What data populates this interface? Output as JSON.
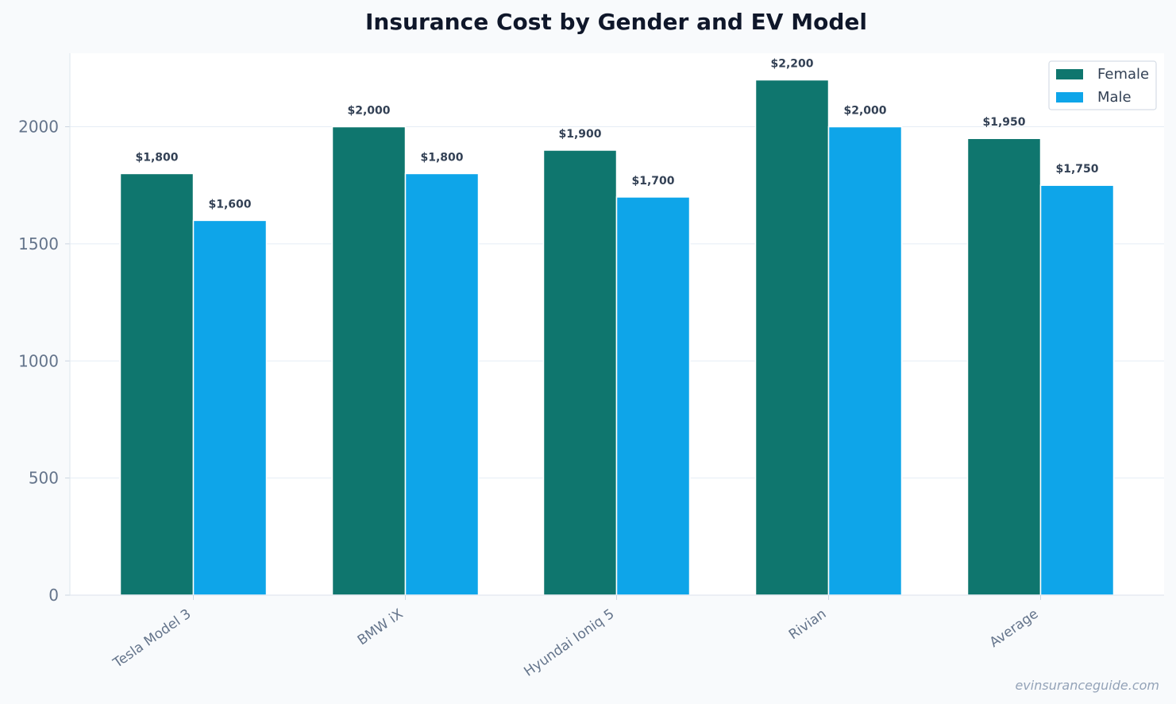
{
  "chart_data": {
    "type": "bar",
    "title": "Insurance Cost by Gender and EV Model",
    "xlabel": "",
    "ylabel": "",
    "categories": [
      "Tesla Model 3",
      "BMW iX",
      "Hyundai Ioniq 5",
      "Rivian",
      "Average"
    ],
    "series": [
      {
        "name": "Female",
        "color": "#0f766e",
        "values": [
          1800,
          2000,
          1900,
          2200,
          1950
        ],
        "labels": [
          "$1,800",
          "$2,000",
          "$1,900",
          "$2,200",
          "$1,950"
        ]
      },
      {
        "name": "Male",
        "color": "#0ea5e9",
        "values": [
          1600,
          1800,
          1700,
          2000,
          1750
        ],
        "labels": [
          "$1,600",
          "$1,800",
          "$1,700",
          "$2,000",
          "$1,750"
        ]
      }
    ],
    "yticks": [
      "0",
      "500",
      "1000",
      "1500",
      "2000"
    ],
    "ylim": [
      0,
      2310
    ],
    "grid": true,
    "legend_position": "top-right"
  },
  "watermark": "evinsuranceguide.com"
}
